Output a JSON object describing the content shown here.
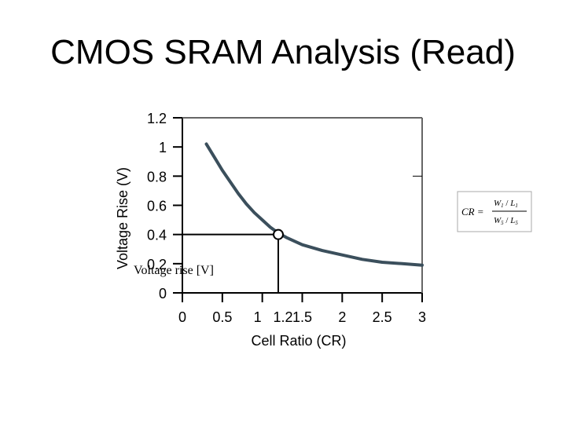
{
  "slide": {
    "title": "CMOS SRAM Analysis (Read)"
  },
  "chart_data": {
    "type": "line",
    "xlabel": "Cell Ratio (CR)",
    "ylabel": "Voltage Rise (V)",
    "inner_label": "Voltage rise [V]",
    "xlim": [
      0,
      3
    ],
    "ylim": [
      0,
      1.2
    ],
    "x_ticks": [
      "0",
      "0.5",
      "1",
      "1.2",
      "1.5",
      "2",
      "2.5",
      "3"
    ],
    "x_tick_values": [
      0,
      0.5,
      1,
      1.2,
      1.5,
      2,
      2.5,
      3
    ],
    "y_ticks": [
      "0",
      "0.2",
      "0.4",
      "0.6",
      "0.8",
      "1",
      "1.2"
    ],
    "y_tick_values": [
      0,
      0.2,
      0.4,
      0.6,
      0.8,
      1,
      1.2
    ],
    "series": [
      {
        "x": [
          0.3,
          0.4,
          0.5,
          0.6,
          0.7,
          0.8,
          0.9,
          1.0,
          1.1,
          1.2,
          1.3,
          1.5,
          1.75,
          2.0,
          2.25,
          2.5,
          2.75,
          3.0
        ],
        "y": [
          1.02,
          0.93,
          0.84,
          0.76,
          0.68,
          0.61,
          0.55,
          0.5,
          0.45,
          0.41,
          0.38,
          0.33,
          0.29,
          0.26,
          0.23,
          0.21,
          0.2,
          0.19
        ]
      }
    ],
    "highlight_point": {
      "x": 1.2,
      "y": 0.4
    },
    "curve_color": "#3b4f5c",
    "grid": false
  },
  "formula": {
    "lhs": "CR",
    "eq": "=",
    "num_w": "W",
    "num_w_sub": "1",
    "num_l": "L",
    "num_l_sub": "1",
    "den_w": "W",
    "den_w_sub": "5",
    "den_l": "L",
    "den_l_sub": "5"
  }
}
